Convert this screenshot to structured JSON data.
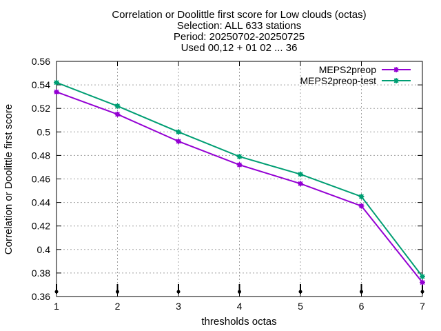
{
  "chart_data": {
    "type": "line",
    "title_lines": [
      "Correlation or Doolittle first score  for Low clouds (octas)",
      "Selection: ALL    633 stations",
      "Period: 20250702-20250725",
      "Used 00,12 + 01 02 ... 36"
    ],
    "xlabel": "thresholds octas",
    "ylabel": "Correlation or Doolittle first score",
    "x": [
      1,
      2,
      3,
      4,
      5,
      6,
      7
    ],
    "xlim": [
      1,
      7
    ],
    "ylim": [
      0.36,
      0.56
    ],
    "x_ticks": [
      "1",
      "2",
      "3",
      "4",
      "5",
      "6",
      "7"
    ],
    "y_ticks": [
      "0.36",
      "0.38",
      "0.4",
      "0.42",
      "0.44",
      "0.46",
      "0.48",
      "0.5",
      "0.52",
      "0.54",
      "0.56"
    ],
    "grid": true,
    "legend_position": "top-right",
    "series": [
      {
        "name": "MEPS2preop",
        "color": "#9400d3",
        "values": [
          0.534,
          0.515,
          0.492,
          0.472,
          0.456,
          0.437,
          0.372
        ]
      },
      {
        "name": "MEPS2preop-test",
        "color": "#009e73",
        "values": [
          0.542,
          0.522,
          0.5,
          0.479,
          0.464,
          0.445,
          0.377
        ]
      }
    ]
  }
}
